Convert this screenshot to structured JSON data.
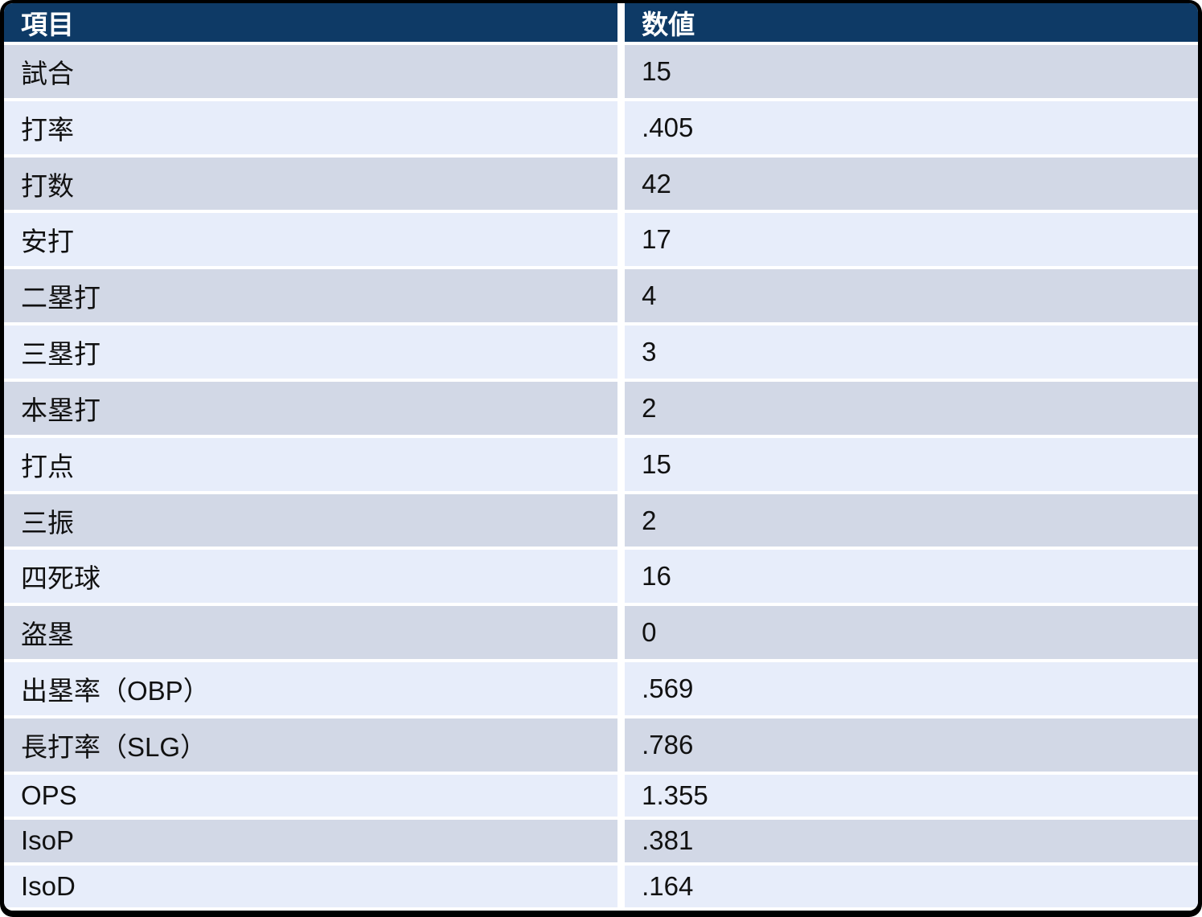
{
  "chart_data": {
    "type": "table",
    "columns": [
      "項目",
      "数値"
    ],
    "rows": [
      [
        "試合",
        "15"
      ],
      [
        "打率",
        ".405"
      ],
      [
        "打数",
        "42"
      ],
      [
        "安打",
        "17"
      ],
      [
        "二塁打",
        "4"
      ],
      [
        "三塁打",
        "3"
      ],
      [
        "本塁打",
        "2"
      ],
      [
        "打点",
        "15"
      ],
      [
        "三振",
        "2"
      ],
      [
        "四死球",
        "16"
      ],
      [
        "盗塁",
        "0"
      ],
      [
        "出塁率（OBP）",
        ".569"
      ],
      [
        "長打率（SLG）",
        ".786"
      ],
      [
        "OPS",
        "1.355"
      ],
      [
        "IsoP",
        ".381"
      ],
      [
        "IsoD",
        ".164"
      ]
    ],
    "title": "",
    "legend": false,
    "layout_hints": {
      "header_row": true,
      "zebra_striping": true,
      "first_data_row_shade": "dark"
    }
  },
  "colors": {
    "header_bg": "#0E3A66",
    "header_text": "#FFFFFF",
    "row_dark": "#D2D8E6",
    "row_light": "#E7EDFA",
    "body_text": "#111111",
    "frame_border": "#000000",
    "divider": "#FFFFFF"
  }
}
